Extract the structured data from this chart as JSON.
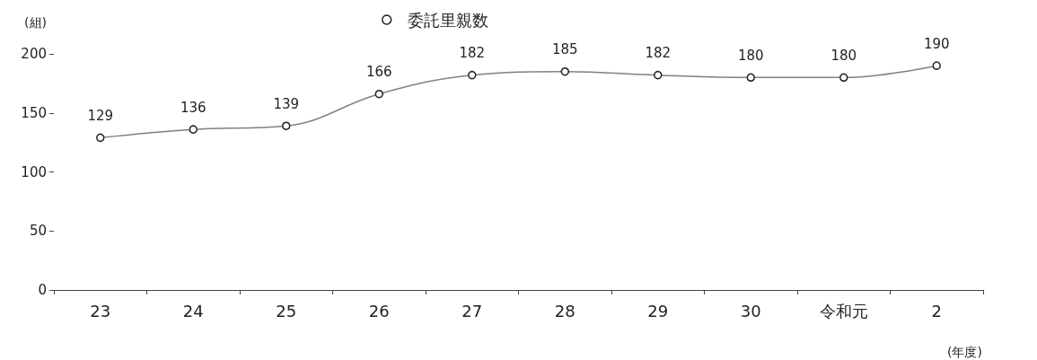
{
  "chart_data": {
    "type": "line",
    "xlabel": "(年度)",
    "ylabel": "(組)",
    "categories": [
      "23",
      "24",
      "25",
      "26",
      "27",
      "28",
      "29",
      "30",
      "令和元",
      "2"
    ],
    "series": [
      {
        "name": "委託里親数",
        "color": "#808080",
        "values": [
          129,
          136,
          139,
          166,
          182,
          185,
          182,
          180,
          180,
          190
        ]
      }
    ],
    "ylim": [
      0,
      200
    ],
    "yticks": [
      0,
      50,
      100,
      150,
      200
    ],
    "grid": false,
    "legend": "top",
    "marker": "circle",
    "line_style": "solid",
    "data_labels": true
  }
}
